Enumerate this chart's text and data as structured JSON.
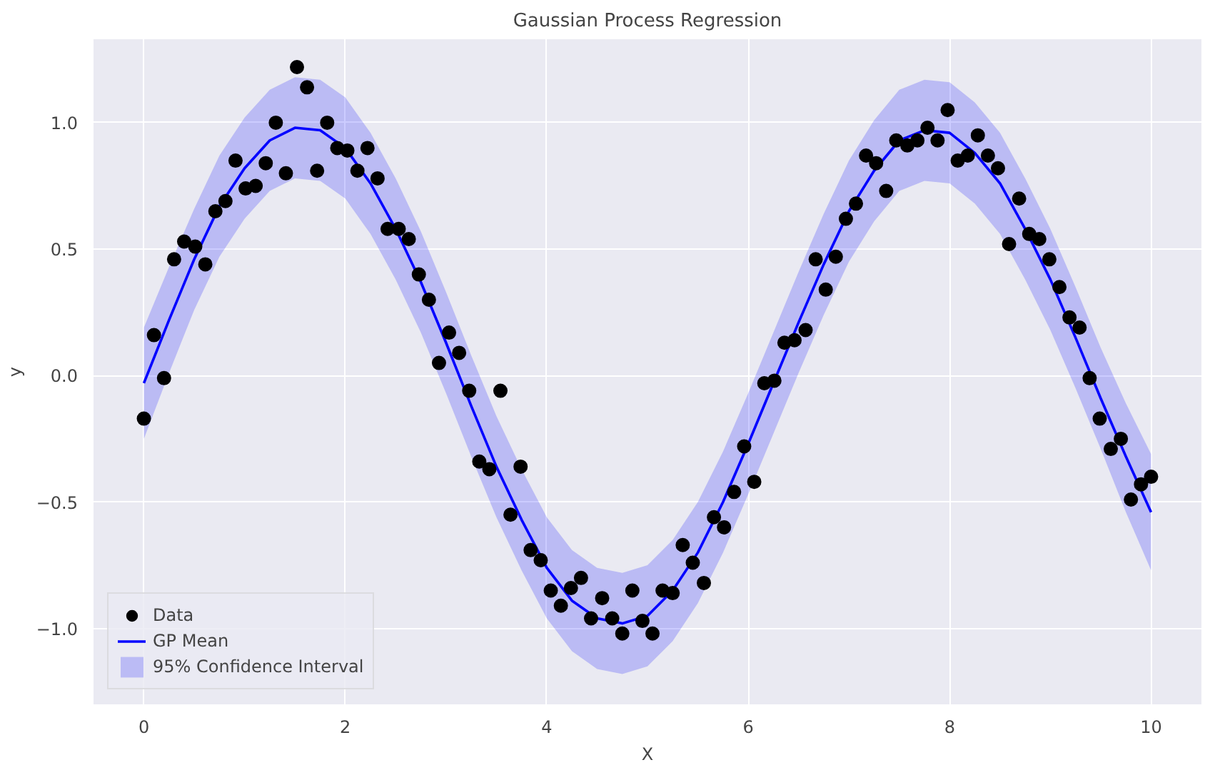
{
  "chart_data": {
    "type": "scatter",
    "title": "Gaussian Process Regression",
    "xlabel": "X",
    "ylabel": "y",
    "xlim": [
      -0.5,
      10.5
    ],
    "ylim": [
      -1.3,
      1.33
    ],
    "xticks": [
      0,
      2,
      4,
      6,
      8,
      10
    ],
    "yticks": [
      {
        "value": -1.0,
        "label": "−1.0"
      },
      {
        "value": -0.5,
        "label": "−0.5"
      },
      {
        "value": 0.0,
        "label": "0.0"
      },
      {
        "value": 0.5,
        "label": "0.5"
      },
      {
        "value": 1.0,
        "label": "1.0"
      }
    ],
    "grid": true,
    "legend": "bottom left",
    "series": [
      {
        "name": "Data",
        "marker": "circle",
        "color": "#000000",
        "x": [
          0,
          0.1,
          0.2,
          0.3,
          0.4,
          0.51,
          0.61,
          0.71,
          0.81,
          0.91,
          1.01,
          1.11,
          1.21,
          1.31,
          1.41,
          1.52,
          1.62,
          1.72,
          1.82,
          1.92,
          2.02,
          2.12,
          2.22,
          2.32,
          2.42,
          2.53,
          2.63,
          2.73,
          2.83,
          2.93,
          3.03,
          3.13,
          3.23,
          3.33,
          3.43,
          3.54,
          3.64,
          3.74,
          3.84,
          3.94,
          4.04,
          4.14,
          4.24,
          4.34,
          4.44,
          4.55,
          4.65,
          4.75,
          4.85,
          4.95,
          5.05,
          5.15,
          5.25,
          5.35,
          5.45,
          5.56,
          5.66,
          5.76,
          5.86,
          5.96,
          6.06,
          6.16,
          6.26,
          6.36,
          6.46,
          6.57,
          6.67,
          6.77,
          6.87,
          6.97,
          7.07,
          7.17,
          7.27,
          7.37,
          7.47,
          7.58,
          7.68,
          7.78,
          7.88,
          7.98,
          8.08,
          8.18,
          8.28,
          8.38,
          8.48,
          8.59,
          8.69,
          8.79,
          8.89,
          8.99,
          9.09,
          9.19,
          9.29,
          9.39,
          9.49,
          9.6,
          9.7,
          9.8,
          9.9,
          10.0
        ],
        "values": [
          -0.17,
          0.16,
          -0.01,
          0.46,
          0.53,
          0.51,
          0.44,
          0.65,
          0.69,
          0.85,
          0.74,
          0.75,
          0.84,
          1.0,
          0.8,
          1.22,
          1.14,
          0.81,
          1.0,
          0.9,
          0.89,
          0.81,
          0.9,
          0.78,
          0.58,
          0.58,
          0.54,
          0.4,
          0.3,
          0.05,
          0.17,
          0.09,
          -0.06,
          -0.34,
          -0.37,
          -0.06,
          -0.55,
          -0.36,
          -0.69,
          -0.73,
          -0.85,
          -0.91,
          -0.84,
          -0.8,
          -0.96,
          -0.88,
          -0.96,
          -1.02,
          -0.85,
          -0.97,
          -1.02,
          -0.85,
          -0.86,
          -0.67,
          -0.74,
          -0.82,
          -0.56,
          -0.6,
          -0.46,
          -0.28,
          -0.42,
          -0.03,
          -0.02,
          0.13,
          0.14,
          0.18,
          0.46,
          0.34,
          0.47,
          0.62,
          0.68,
          0.87,
          0.84,
          0.73,
          0.93,
          0.91,
          0.93,
          0.98,
          0.93,
          1.05,
          0.85,
          0.87,
          0.95,
          0.87,
          0.82,
          0.52,
          0.7,
          0.56,
          0.54,
          0.46,
          0.35,
          0.23,
          0.19,
          -0.01,
          -0.17,
          -0.29,
          -0.25,
          -0.49,
          -0.43,
          -0.4
        ]
      },
      {
        "name": "GP Mean",
        "type": "line",
        "color": "#0000ff",
        "x": [
          0,
          0.25,
          0.5,
          0.75,
          1,
          1.25,
          1.5,
          1.75,
          2,
          2.25,
          2.5,
          2.75,
          3,
          3.25,
          3.5,
          3.75,
          4,
          4.25,
          4.5,
          4.75,
          5,
          5.25,
          5.5,
          5.75,
          6,
          6.25,
          6.5,
          6.75,
          7,
          7.25,
          7.5,
          7.75,
          8,
          8.25,
          8.5,
          8.75,
          9,
          9.25,
          9.5,
          9.75,
          10
        ],
        "values": [
          -0.03,
          0.22,
          0.46,
          0.67,
          0.82,
          0.93,
          0.98,
          0.97,
          0.9,
          0.76,
          0.58,
          0.37,
          0.13,
          -0.12,
          -0.36,
          -0.57,
          -0.76,
          -0.89,
          -0.96,
          -0.98,
          -0.95,
          -0.85,
          -0.7,
          -0.5,
          -0.27,
          -0.03,
          0.21,
          0.44,
          0.65,
          0.81,
          0.93,
          0.97,
          0.96,
          0.88,
          0.76,
          0.58,
          0.38,
          0.15,
          -0.09,
          -0.32,
          -0.54
        ]
      },
      {
        "name": "95% Confidence Interval",
        "type": "line",
        "color": "#0000ff",
        "x": [
          0,
          0.25,
          0.5,
          0.75,
          1,
          1.25,
          1.5,
          1.75,
          2,
          2.25,
          2.5,
          2.75,
          3,
          3.25,
          3.5,
          3.75,
          4,
          4.25,
          4.5,
          4.75,
          5,
          5.25,
          5.5,
          5.75,
          6,
          6.25,
          6.5,
          6.75,
          7,
          7.25,
          7.5,
          7.75,
          8,
          8.25,
          8.5,
          8.75,
          9,
          9.25,
          9.5,
          9.75,
          10
        ],
        "values": [
          null,
          null,
          null,
          null,
          null,
          null,
          null,
          null,
          null,
          null,
          null,
          null,
          null,
          null,
          null,
          null,
          null,
          null,
          null,
          null,
          null,
          null,
          null,
          null,
          null,
          null,
          null,
          null,
          null,
          null,
          null,
          null,
          null,
          null,
          null,
          null,
          null,
          null,
          null,
          null,
          null
        ],
        "upper": [
          0.19,
          0.43,
          0.66,
          0.87,
          1.02,
          1.13,
          1.18,
          1.17,
          1.1,
          0.96,
          0.78,
          0.57,
          0.33,
          0.08,
          -0.16,
          -0.37,
          -0.56,
          -0.69,
          -0.76,
          -0.78,
          -0.75,
          -0.65,
          -0.5,
          -0.3,
          -0.07,
          0.17,
          0.41,
          0.64,
          0.85,
          1.01,
          1.13,
          1.17,
          1.16,
          1.08,
          0.96,
          0.78,
          0.58,
          0.35,
          0.11,
          -0.11,
          -0.31
        ],
        "lower": [
          -0.25,
          0.01,
          0.26,
          0.47,
          0.62,
          0.73,
          0.78,
          0.77,
          0.7,
          0.56,
          0.38,
          0.17,
          -0.07,
          -0.32,
          -0.56,
          -0.77,
          -0.96,
          -1.09,
          -1.16,
          -1.18,
          -1.15,
          -1.05,
          -0.9,
          -0.7,
          -0.47,
          -0.23,
          0.01,
          0.24,
          0.45,
          0.61,
          0.73,
          0.77,
          0.76,
          0.68,
          0.56,
          0.38,
          0.18,
          -0.05,
          -0.29,
          -0.54,
          -0.77
        ]
      }
    ]
  }
}
